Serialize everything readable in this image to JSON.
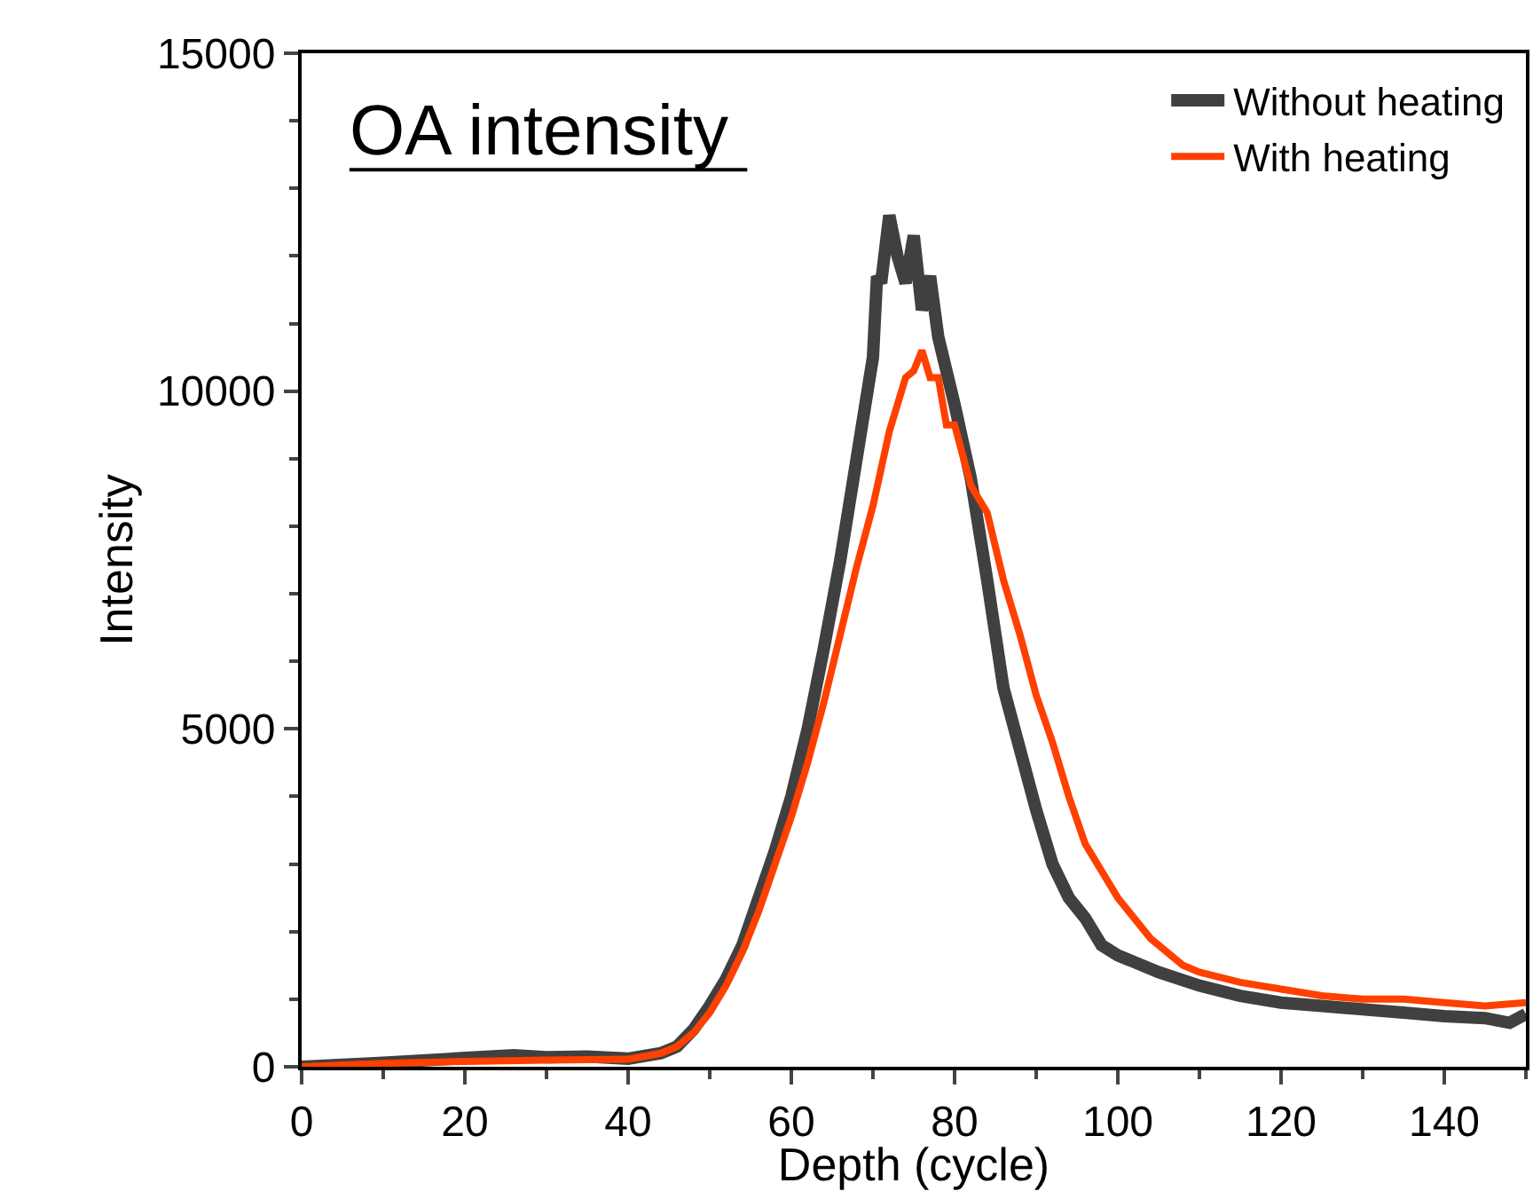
{
  "chart_data": {
    "type": "line",
    "title": "OA intensity",
    "xlabel": "Depth (cycle)",
    "ylabel": "Intensity",
    "xlim": [
      0,
      150
    ],
    "ylim": [
      0,
      15000
    ],
    "xticks": [
      0,
      20,
      40,
      60,
      80,
      100,
      120,
      140
    ],
    "yticks": [
      0,
      5000,
      10000,
      15000
    ],
    "grid": false,
    "legend": "top right",
    "marker": "none",
    "line_style": "solid",
    "series": [
      {
        "name": "Without heating",
        "color": "#404040",
        "x": [
          0,
          10,
          20,
          26,
          30,
          35,
          40,
          44,
          46,
          48,
          50,
          52,
          54,
          56,
          58,
          60,
          62,
          64,
          66,
          68,
          70,
          70.5,
          71,
          72,
          73,
          74,
          75,
          76,
          77,
          78,
          80,
          82,
          84,
          86,
          88,
          90,
          92,
          94,
          96,
          98,
          100,
          105,
          110,
          115,
          120,
          125,
          130,
          135,
          140,
          145,
          148,
          150
        ],
        "values": [
          0,
          60,
          130,
          170,
          140,
          150,
          120,
          200,
          300,
          550,
          900,
          1300,
          1800,
          2500,
          3200,
          4000,
          5000,
          6200,
          7500,
          9000,
          10500,
          11700,
          11600,
          12600,
          12000,
          11600,
          12300,
          11200,
          11700,
          10800,
          9800,
          8700,
          7200,
          5600,
          4700,
          3800,
          3000,
          2500,
          2200,
          1800,
          1650,
          1400,
          1200,
          1050,
          950,
          900,
          850,
          800,
          750,
          720,
          650,
          780
        ]
      },
      {
        "name": "With heating",
        "color": "#ff4000",
        "x": [
          0,
          10,
          20,
          30,
          40,
          44,
          46,
          48,
          50,
          52,
          54,
          56,
          58,
          60,
          62,
          64,
          66,
          68,
          70,
          72,
          74,
          75,
          76,
          77,
          78,
          79,
          80,
          82,
          84,
          86,
          88,
          90,
          92,
          94,
          96,
          98,
          100,
          102,
          104,
          106,
          108,
          110,
          115,
          120,
          125,
          130,
          135,
          140,
          145,
          150
        ],
        "values": [
          0,
          50,
          80,
          100,
          110,
          200,
          300,
          500,
          800,
          1200,
          1700,
          2300,
          3000,
          3700,
          4500,
          5400,
          6400,
          7400,
          8300,
          9400,
          10200,
          10300,
          10600,
          10200,
          10200,
          9500,
          9500,
          8600,
          8200,
          7200,
          6400,
          5500,
          4800,
          4000,
          3300,
          2900,
          2500,
          2200,
          1900,
          1700,
          1500,
          1400,
          1250,
          1150,
          1050,
          1000,
          1000,
          950,
          900,
          950
        ]
      }
    ]
  }
}
